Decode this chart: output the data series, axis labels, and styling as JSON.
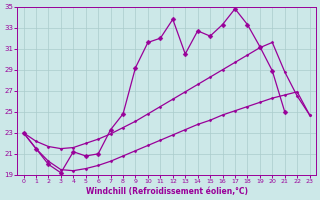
{
  "xlabel": "Windchill (Refroidissement éolien,°C)",
  "xlim": [
    -0.5,
    23.5
  ],
  "ylim": [
    19,
    35
  ],
  "yticks": [
    19,
    21,
    23,
    25,
    27,
    29,
    31,
    33,
    35
  ],
  "xticks": [
    0,
    1,
    2,
    3,
    4,
    5,
    6,
    7,
    8,
    9,
    10,
    11,
    12,
    13,
    14,
    15,
    16,
    17,
    18,
    19,
    20,
    21,
    22,
    23
  ],
  "bg_color": "#cce8e8",
  "grid_color": "#aacccc",
  "line_color": "#990099",
  "jagged_x": [
    0,
    1,
    2,
    3,
    4,
    5,
    6,
    7,
    8,
    9,
    10,
    11,
    12,
    13,
    14,
    15,
    16,
    17,
    18,
    19,
    20,
    21
  ],
  "jagged_y": [
    23.0,
    21.5,
    20.0,
    19.2,
    21.2,
    20.8,
    21.0,
    23.3,
    24.8,
    29.2,
    31.6,
    32.0,
    33.8,
    30.5,
    32.7,
    32.2,
    33.3,
    34.8,
    33.3,
    31.2,
    28.9,
    25.0
  ],
  "smooth1_x": [
    0,
    1,
    2,
    3,
    4,
    5,
    6,
    7,
    8,
    9,
    10,
    11,
    12,
    13,
    14,
    15,
    16,
    17,
    18,
    19,
    20,
    21,
    22,
    23
  ],
  "smooth1_y": [
    23.0,
    22.2,
    21.7,
    21.5,
    21.6,
    22.0,
    22.4,
    22.9,
    23.5,
    24.1,
    24.8,
    25.5,
    26.2,
    26.9,
    27.6,
    28.3,
    29.0,
    29.7,
    30.4,
    31.1,
    31.6,
    28.8,
    26.5,
    24.7
  ],
  "smooth2_x": [
    0,
    1,
    2,
    3,
    4,
    5,
    6,
    7,
    8,
    9,
    10,
    11,
    12,
    13,
    14,
    15,
    16,
    17,
    18,
    19,
    20,
    21,
    22,
    23
  ],
  "smooth2_y": [
    23.0,
    21.5,
    20.3,
    19.5,
    19.4,
    19.6,
    19.9,
    20.3,
    20.8,
    21.3,
    21.8,
    22.3,
    22.8,
    23.3,
    23.8,
    24.2,
    24.7,
    25.1,
    25.5,
    25.9,
    26.3,
    26.6,
    26.9,
    24.7
  ]
}
